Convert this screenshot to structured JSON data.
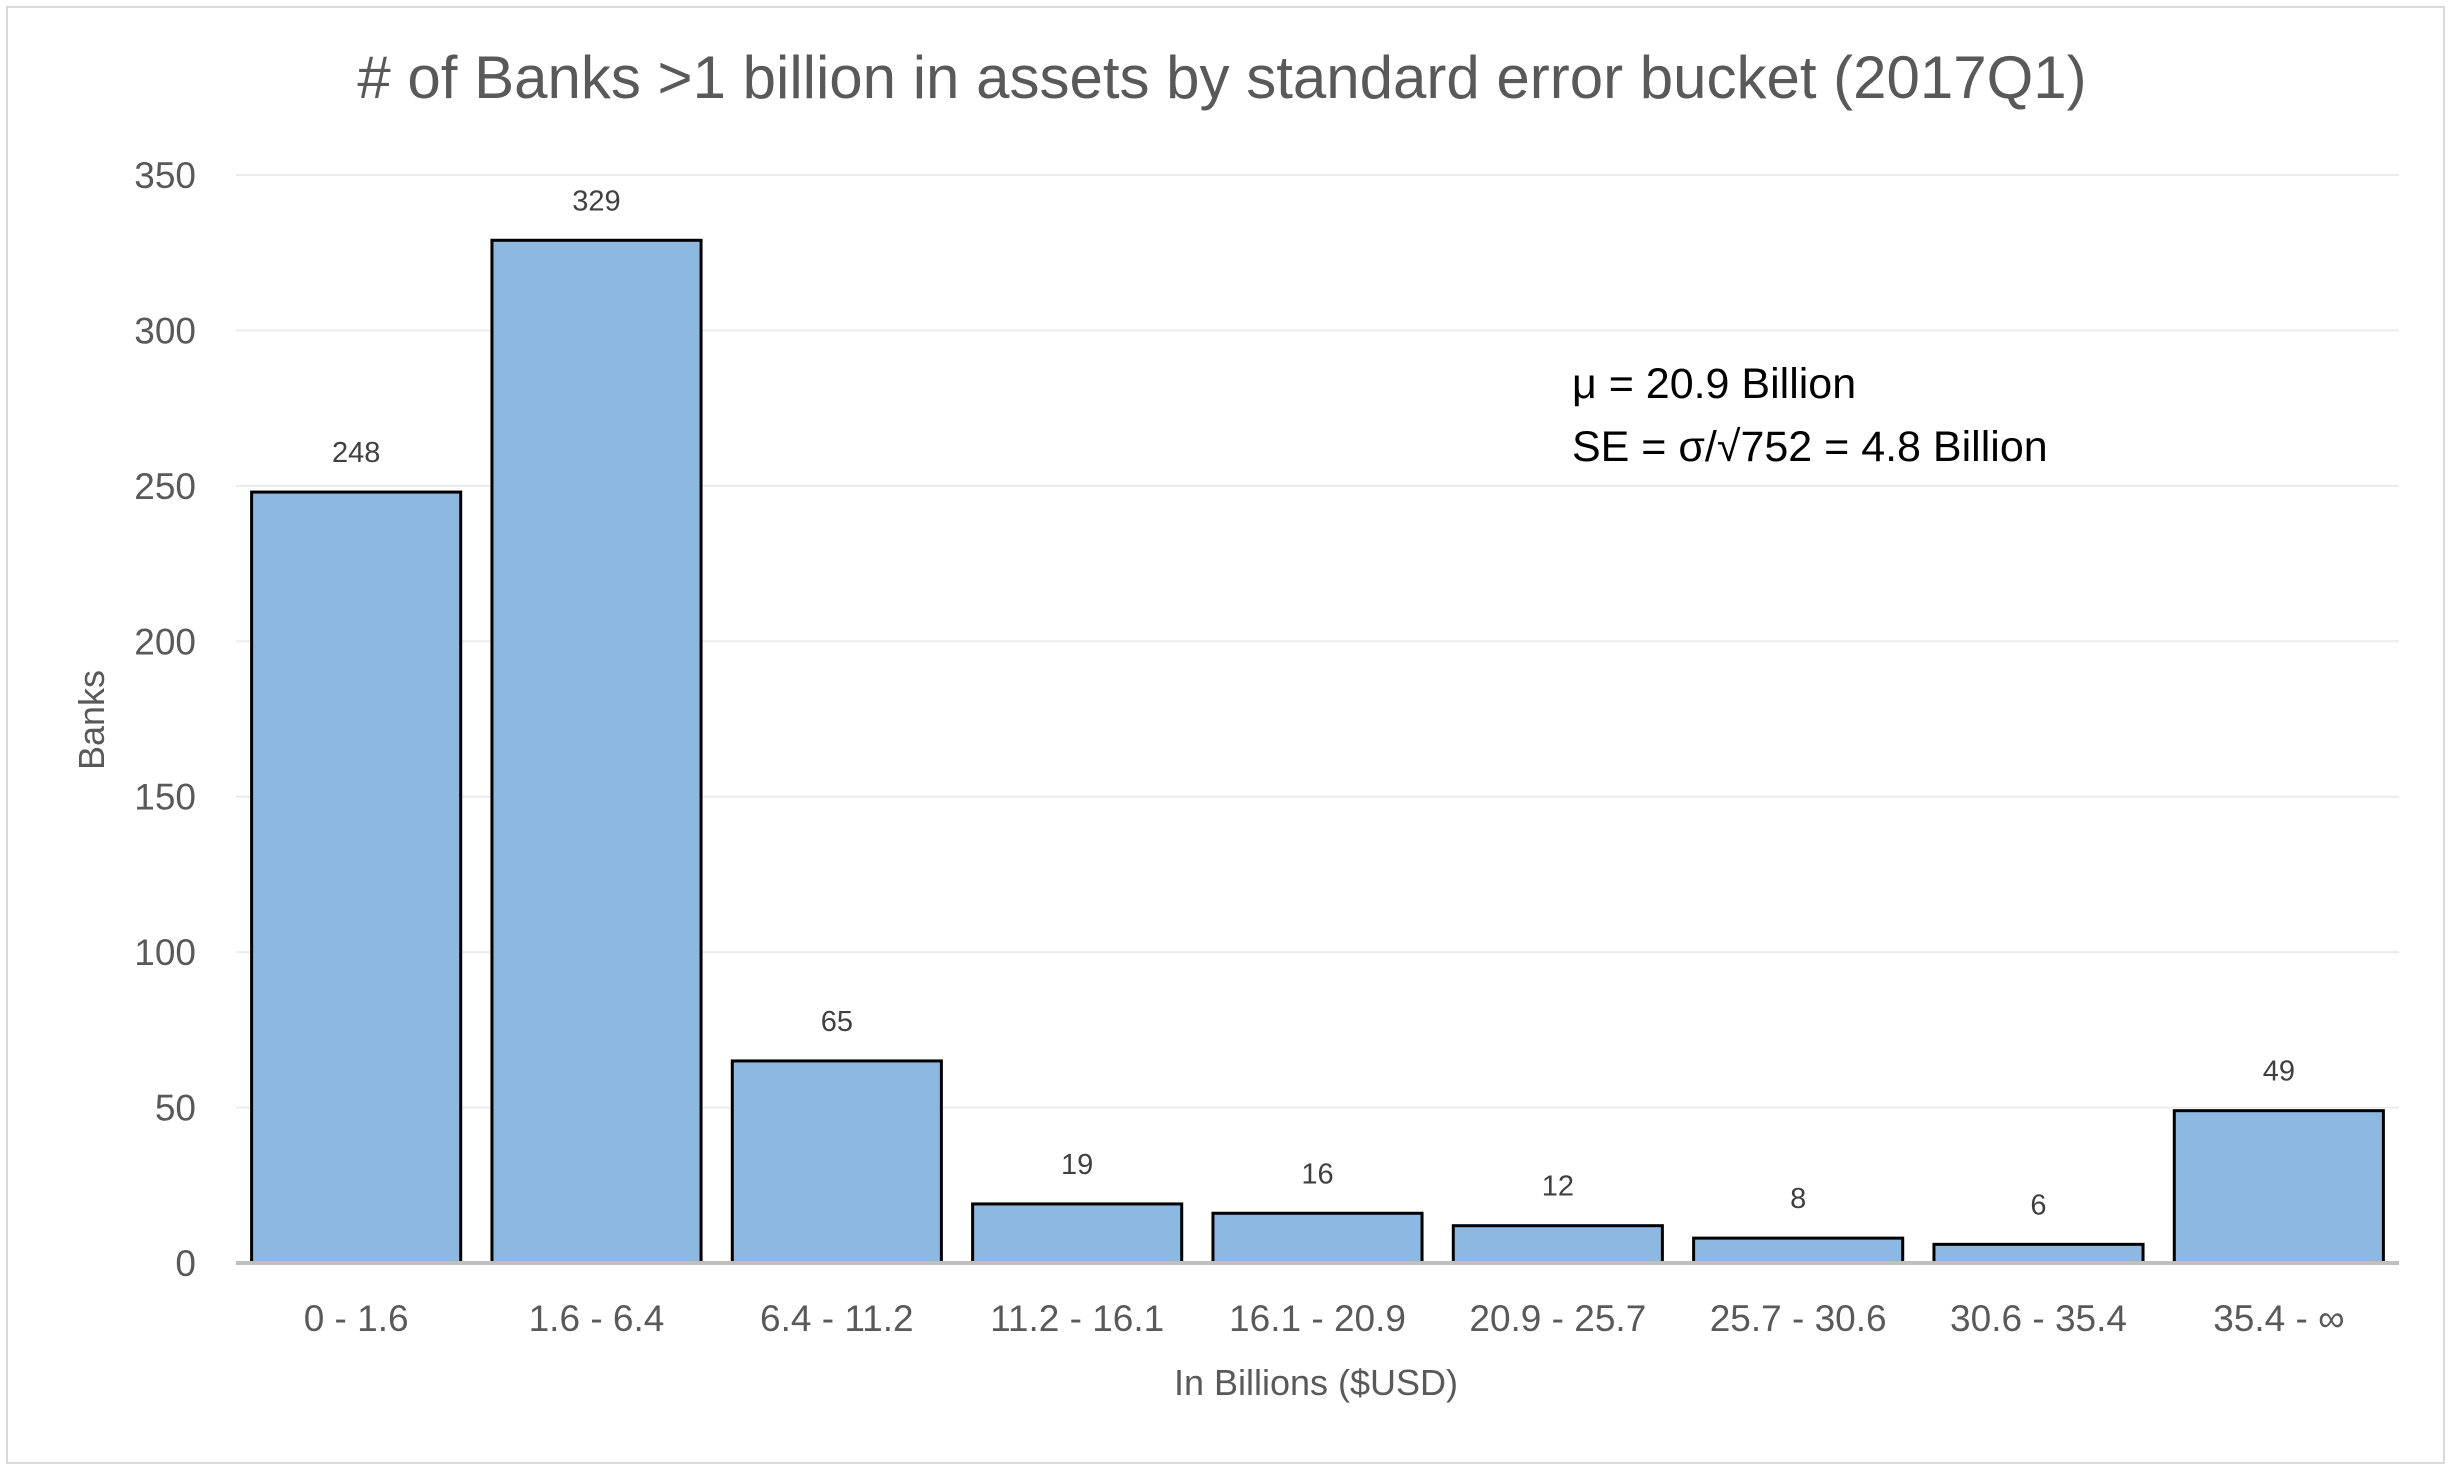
{
  "chart_data": {
    "type": "bar",
    "title": "# of Banks >1 billion in assets by standard error bucket (2017Q1)",
    "xlabel": "In Billions ($USD)",
    "ylabel": "Banks",
    "categories": [
      "0 - 1.6",
      "1.6 - 6.4",
      "6.4 - 11.2",
      "11.2 - 16.1",
      "16.1 - 20.9",
      "20.9 - 25.7",
      "25.7 - 30.6",
      "30.6 - 35.4",
      "35.4 - ∞"
    ],
    "values": [
      248,
      329,
      65,
      19,
      16,
      12,
      8,
      6,
      49
    ],
    "data_labels": [
      "248",
      "329",
      "65",
      "19",
      "16",
      "12",
      "8",
      "6",
      "49"
    ],
    "ylim": [
      0,
      350
    ],
    "yticks": [
      0,
      50,
      100,
      150,
      200,
      250,
      300,
      350
    ],
    "ytick_labels": [
      "0",
      "50",
      "100",
      "150",
      "200",
      "250",
      "300",
      "350"
    ],
    "grid": true,
    "legend": "none",
    "annotations": [
      "μ = 20.9 Billion",
      "SE =  σ/√752 = 4.8 Billion"
    ],
    "colors": {
      "bar_fill": "#8db8e2",
      "bar_stroke": "#000000",
      "grid": "#ececec",
      "axis": "#bfbfbf",
      "text": "#595959"
    }
  }
}
